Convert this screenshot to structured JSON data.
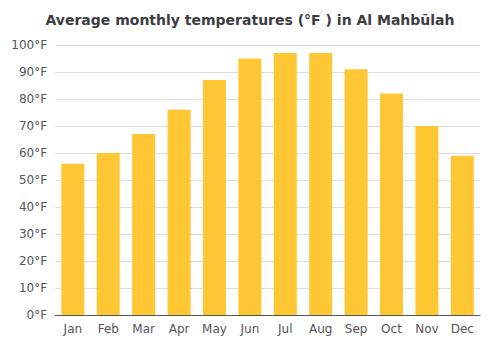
{
  "chart_data": {
    "type": "bar",
    "title": "Average monthly temperatures (°F ) in Al Mahbūlah",
    "categories": [
      "Jan",
      "Feb",
      "Mar",
      "Apr",
      "May",
      "Jun",
      "Jul",
      "Aug",
      "Sep",
      "Oct",
      "Nov",
      "Dec"
    ],
    "values": [
      56,
      60,
      67,
      76,
      87,
      95,
      97,
      97,
      91,
      82,
      70,
      59
    ],
    "color": "#FFC733",
    "ylim": [
      0,
      100
    ],
    "yticks": [
      {
        "value": 0,
        "label": "0°F"
      },
      {
        "value": 10,
        "label": "10°F"
      },
      {
        "value": 20,
        "label": "20°F"
      },
      {
        "value": 30,
        "label": "30°F"
      },
      {
        "value": 40,
        "label": "40°F"
      },
      {
        "value": 50,
        "label": "50°F"
      },
      {
        "value": 60,
        "label": "60°F"
      },
      {
        "value": 70,
        "label": "70°F"
      },
      {
        "value": 80,
        "label": "80°F"
      },
      {
        "value": 90,
        "label": "90°F"
      },
      {
        "value": 100,
        "label": "100°F"
      }
    ],
    "grid": true
  }
}
